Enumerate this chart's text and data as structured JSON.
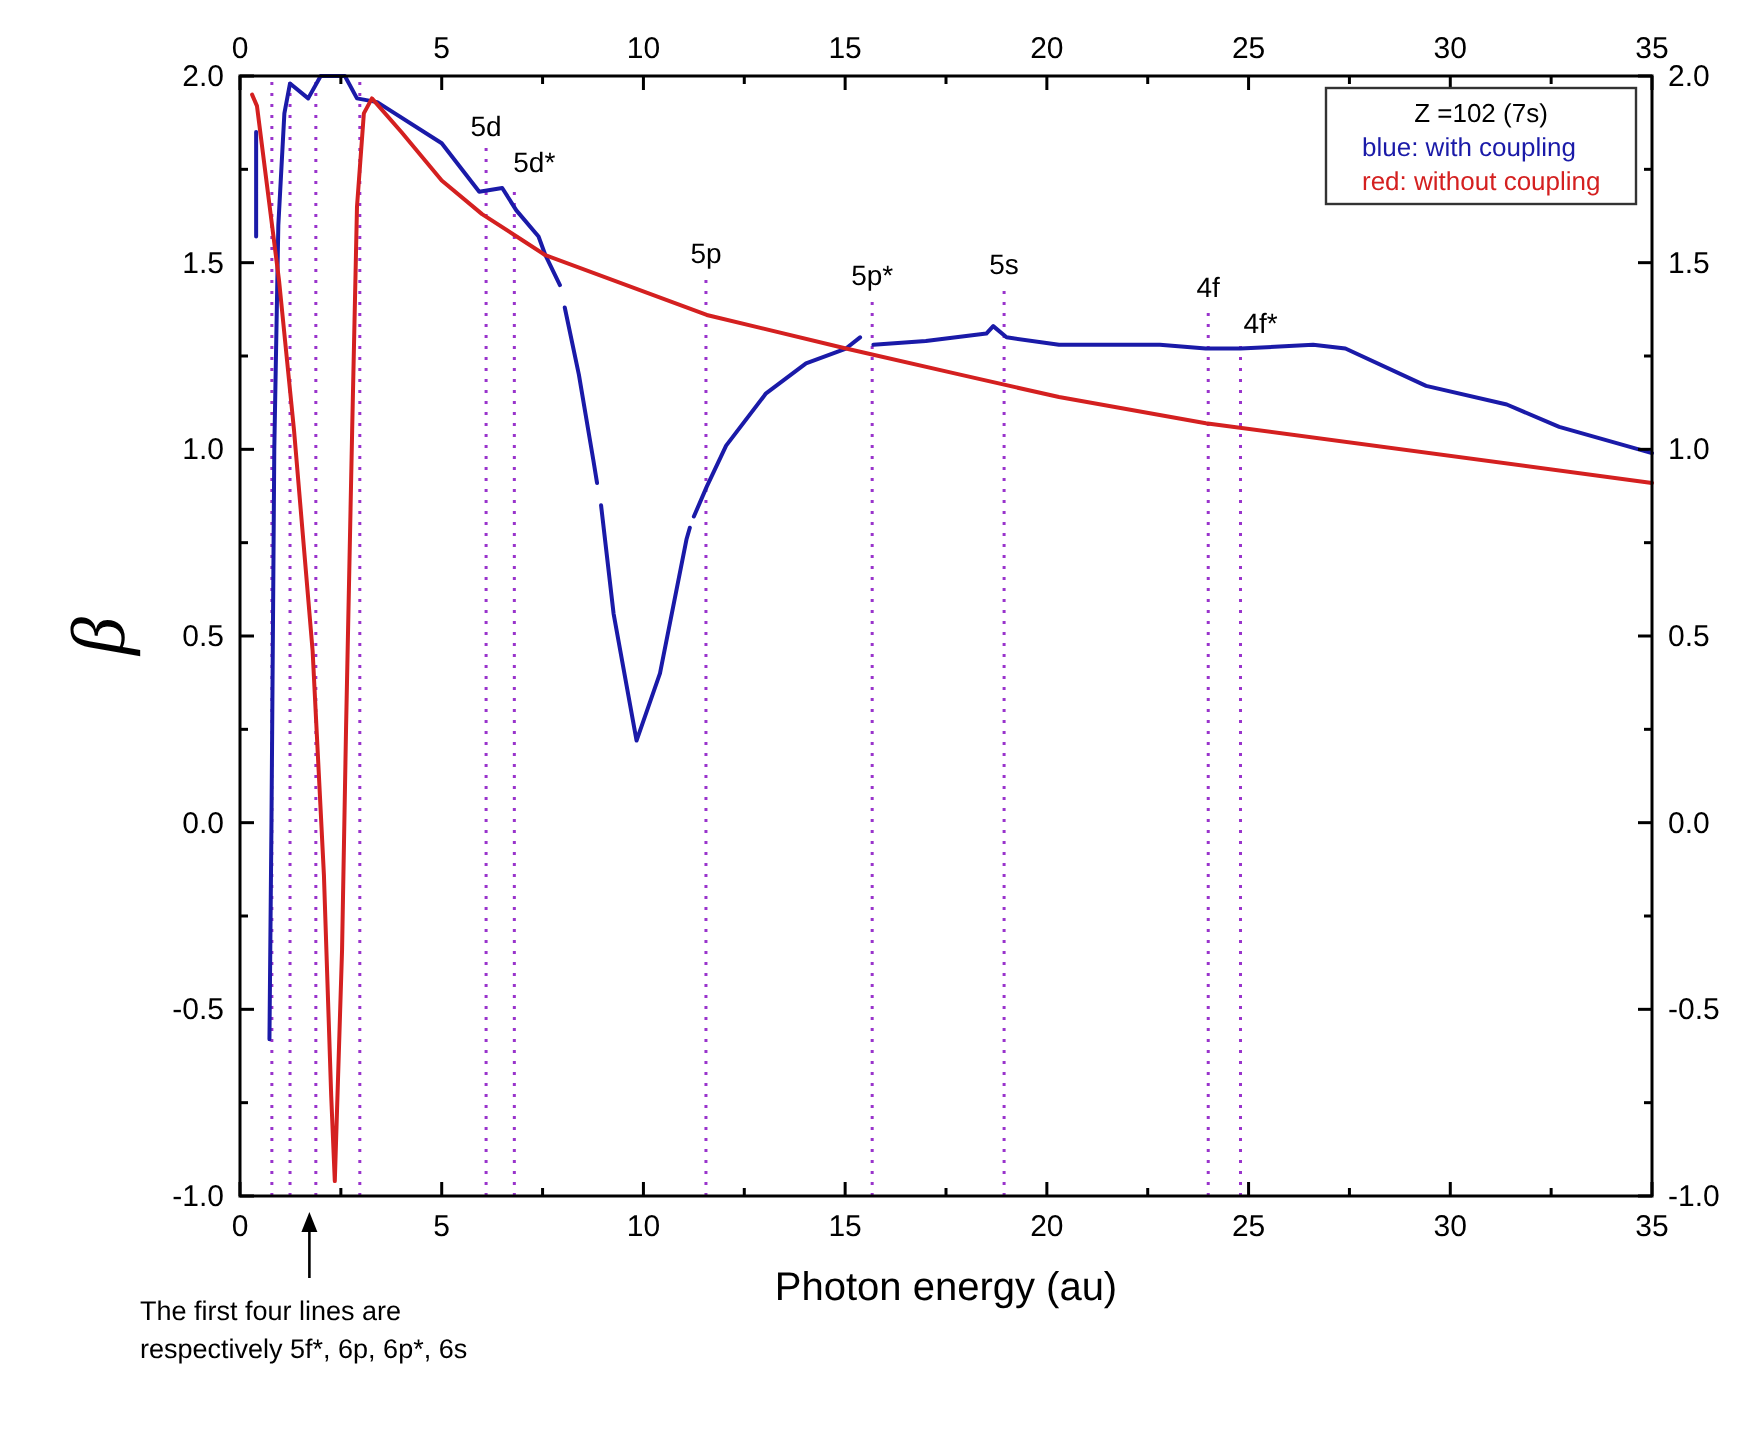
{
  "chart_data": {
    "type": "line",
    "xlabel": "Photon energy (au)",
    "ylabel": "β",
    "legend_title": "Z =102 (7s)",
    "legend": "top right",
    "grid": false,
    "line_style": "solid",
    "marker": "none",
    "xlim": [
      0,
      35
    ],
    "xticks": [
      0,
      {
        "value": 2.5,
        "label": null
      },
      5,
      {
        "value": 7.5,
        "label": null
      },
      10,
      {
        "value": 12.5,
        "label": null
      },
      15,
      {
        "value": 17.5,
        "label": null
      },
      20,
      {
        "value": 22.5,
        "label": null
      },
      25,
      {
        "value": 27.5,
        "label": null
      },
      30,
      {
        "value": 32.5,
        "label": null
      },
      35
    ],
    "x2lim": [
      0,
      35
    ],
    "x2ticks": [
      0,
      {
        "value": 2.5,
        "label": null
      },
      5,
      {
        "value": 7.5,
        "label": null
      },
      10,
      {
        "value": 12.5,
        "label": null
      },
      15,
      {
        "value": 17.5,
        "label": null
      },
      20,
      {
        "value": 22.5,
        "label": null
      },
      25,
      {
        "value": 27.5,
        "label": null
      },
      30,
      {
        "value": 32.5,
        "label": null
      },
      35
    ],
    "ylim": [
      -1.0,
      2.0
    ],
    "yticks": [
      {
        "value": -1.0,
        "label": "-1.0"
      },
      {
        "value": -0.75,
        "label": null
      },
      {
        "value": -0.5,
        "label": "-0.5"
      },
      {
        "value": -0.25,
        "label": null
      },
      {
        "value": 0,
        "label": "0.0"
      },
      {
        "value": 0.25,
        "label": null
      },
      {
        "value": 0.5,
        "label": "0.5"
      },
      {
        "value": 0.75,
        "label": null
      },
      {
        "value": 1.0,
        "label": "1.0"
      },
      {
        "value": 1.25,
        "label": null
      },
      {
        "value": 1.5,
        "label": "1.5"
      },
      {
        "value": 1.75,
        "label": null
      },
      {
        "value": 2.0,
        "label": "2.0"
      }
    ],
    "y2lim": [
      -1.0,
      2.0
    ],
    "y2ticks": [
      {
        "value": -1.0,
        "label": "-1.0"
      },
      {
        "value": -0.75,
        "label": null
      },
      {
        "value": -0.5,
        "label": "-0.5"
      },
      {
        "value": -0.25,
        "label": null
      },
      {
        "value": 0,
        "label": "0.0"
      },
      {
        "value": 0.25,
        "label": null
      },
      {
        "value": 0.5,
        "label": "0.5"
      },
      {
        "value": 0.75,
        "label": null
      },
      {
        "value": 1.0,
        "label": "1.0"
      },
      {
        "value": 1.25,
        "label": null
      },
      {
        "value": 1.5,
        "label": "1.5"
      },
      {
        "value": 1.75,
        "label": null
      },
      {
        "value": 2.0,
        "label": "2.0"
      }
    ],
    "series": [
      {
        "name": "blue: with coupling",
        "color": "#1a1aa8",
        "x": [
          0.4,
          0.4,
          0.5,
          0.73,
          0.78,
          0.85,
          0.95,
          1.1,
          1.24,
          1.69,
          2.0,
          2.6,
          2.9,
          3.4,
          5.0,
          5.93,
          6.5,
          6.85,
          7.4,
          7.57,
          7.93,
          8.0,
          8.05,
          8.4,
          8.76,
          8.85,
          8.9,
          8.95,
          9.26,
          9.83,
          10.41,
          11.07,
          11.15,
          11.2,
          11.25,
          11.57,
          12.05,
          13.04,
          14.03,
          15.02,
          15.37,
          15.5,
          15.7,
          17.0,
          18.5,
          18.67,
          19.0,
          20.3,
          22.8,
          23.94,
          24.8,
          26.6,
          27.4,
          29.4,
          31.4,
          32.7,
          35.0
        ],
        "values": [
          1.85,
          1.57,
          null,
          -0.58,
          0.0,
          1.0,
          1.6,
          1.9,
          1.98,
          1.94,
          2.0,
          2.0,
          1.94,
          1.93,
          1.82,
          1.69,
          1.7,
          1.64,
          1.57,
          1.52,
          1.44,
          null,
          1.38,
          1.2,
          0.97,
          0.91,
          null,
          0.85,
          0.56,
          0.22,
          0.4,
          0.76,
          0.79,
          null,
          0.82,
          0.9,
          1.01,
          1.15,
          1.23,
          1.27,
          1.3,
          null,
          1.28,
          1.29,
          1.31,
          1.33,
          1.3,
          1.28,
          1.28,
          1.27,
          1.27,
          1.28,
          1.27,
          1.17,
          1.12,
          1.06,
          0.99
        ]
      },
      {
        "name": "red: without coupling",
        "color": "#d42020",
        "x": [
          0.3,
          0.42,
          0.97,
          1.34,
          1.8,
          2.08,
          2.26,
          2.35,
          2.53,
          2.63,
          2.78,
          2.9,
          3.07,
          3.27,
          4.0,
          5.0,
          6.0,
          7.0,
          7.57,
          11.57,
          15.02,
          17.85,
          20.3,
          23.94,
          35.0
        ],
        "values": [
          1.95,
          1.92,
          1.45,
          1.05,
          0.46,
          -0.14,
          -0.73,
          -0.96,
          -0.34,
          0.26,
          1.05,
          1.65,
          1.9,
          1.94,
          1.85,
          1.72,
          1.63,
          1.56,
          1.52,
          1.36,
          1.27,
          1.2,
          1.14,
          1.07,
          0.91
        ]
      }
    ],
    "ref_lines": [
      {
        "axis": "x",
        "value": 0.79,
        "label": null,
        "color": "#9933cc",
        "line_style": "dotted"
      },
      {
        "axis": "x",
        "value": 1.24,
        "label": null,
        "color": "#9933cc",
        "line_style": "dotted"
      },
      {
        "axis": "x",
        "value": 1.88,
        "label": null,
        "color": "#9933cc",
        "line_style": "dotted"
      },
      {
        "axis": "x",
        "value": 2.97,
        "label": null,
        "color": "#9933cc",
        "line_style": "dotted"
      },
      {
        "axis": "x",
        "value": 6.1,
        "label": "5d",
        "color": "#9933cc",
        "line_style": "dotted"
      },
      {
        "axis": "x",
        "value": 6.8,
        "label": "5d*",
        "color": "#9933cc",
        "line_style": "dotted"
      },
      {
        "axis": "x",
        "value": 11.55,
        "label": "5p",
        "color": "#9933cc",
        "line_style": "dotted"
      },
      {
        "axis": "x",
        "value": 15.67,
        "label": "5p*",
        "color": "#9933cc",
        "line_style": "dotted"
      },
      {
        "axis": "x",
        "value": 18.94,
        "label": "5s",
        "color": "#9933cc",
        "line_style": "dotted"
      },
      {
        "axis": "x",
        "value": 24.0,
        "label": "4f",
        "color": "#9933cc",
        "line_style": "dotted"
      },
      {
        "axis": "x",
        "value": 24.8,
        "label": "4f*",
        "color": "#9933cc",
        "line_style": "dotted"
      }
    ],
    "annotations": [
      "The first four lines are respectively 5f*, 6p, 6p*, 6s"
    ]
  }
}
